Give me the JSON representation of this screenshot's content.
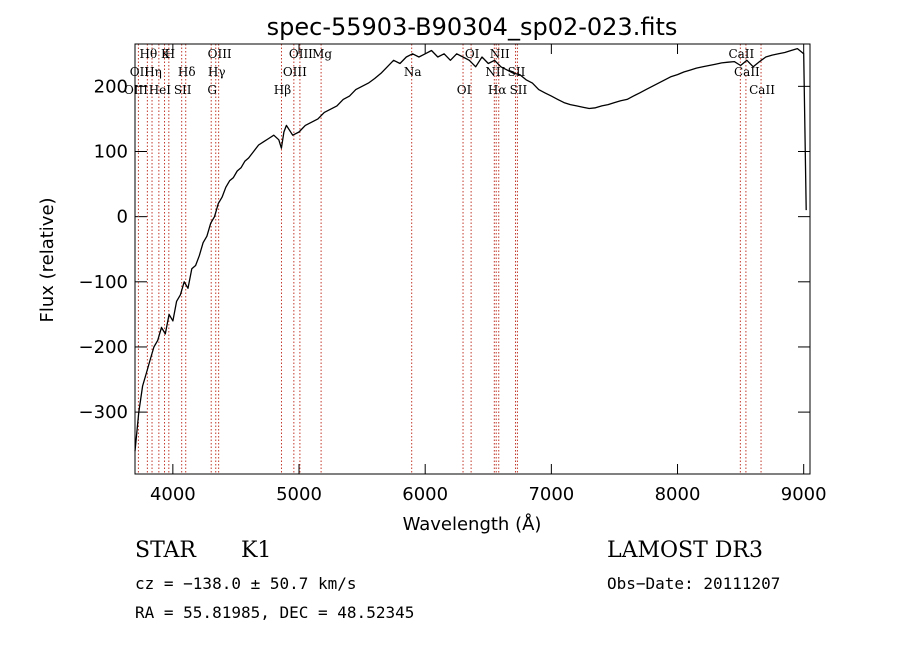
{
  "chart_data": {
    "type": "line",
    "title": "spec-55903-B90304_sp02-023.fits",
    "xlabel": "Wavelength (Å)",
    "ylabel": "Flux (relative)",
    "xlim": [
      3700,
      9050
    ],
    "ylim": [
      -395,
      265
    ],
    "x_ticks": [
      4000,
      5000,
      6000,
      7000,
      8000,
      9000
    ],
    "y_ticks": [
      -300,
      -200,
      -100,
      0,
      100,
      200
    ],
    "series": [
      {
        "name": "flux",
        "x": [
          3700,
          3730,
          3760,
          3790,
          3820,
          3850,
          3880,
          3910,
          3940,
          3970,
          4000,
          4030,
          4060,
          4090,
          4120,
          4150,
          4180,
          4210,
          4240,
          4270,
          4300,
          4330,
          4360,
          4390,
          4420,
          4450,
          4480,
          4510,
          4540,
          4570,
          4600,
          4640,
          4680,
          4720,
          4760,
          4800,
          4840,
          4860,
          4880,
          4900,
          4950,
          5000,
          5050,
          5100,
          5150,
          5200,
          5250,
          5300,
          5350,
          5400,
          5450,
          5500,
          5550,
          5600,
          5650,
          5700,
          5750,
          5800,
          5850,
          5900,
          5950,
          6000,
          6050,
          6100,
          6150,
          6200,
          6250,
          6300,
          6350,
          6400,
          6450,
          6500,
          6550,
          6600,
          6650,
          6700,
          6750,
          6800,
          6850,
          6900,
          6950,
          7000,
          7050,
          7100,
          7150,
          7200,
          7250,
          7300,
          7350,
          7400,
          7450,
          7500,
          7550,
          7600,
          7650,
          7700,
          7750,
          7800,
          7850,
          7900,
          7950,
          8000,
          8050,
          8100,
          8150,
          8200,
          8250,
          8300,
          8350,
          8400,
          8450,
          8500,
          8550,
          8600,
          8650,
          8700,
          8750,
          8800,
          8850,
          8900,
          8950,
          9000,
          9020
        ],
        "values": [
          -360,
          -300,
          -260,
          -240,
          -220,
          -200,
          -190,
          -170,
          -180,
          -150,
          -160,
          -130,
          -120,
          -100,
          -110,
          -80,
          -75,
          -60,
          -40,
          -30,
          -10,
          0,
          20,
          30,
          45,
          55,
          60,
          70,
          75,
          85,
          90,
          100,
          110,
          115,
          120,
          125,
          118,
          105,
          130,
          140,
          125,
          130,
          140,
          145,
          150,
          160,
          165,
          170,
          180,
          185,
          195,
          200,
          205,
          212,
          220,
          230,
          240,
          235,
          245,
          250,
          245,
          250,
          255,
          245,
          250,
          240,
          250,
          245,
          240,
          230,
          245,
          235,
          240,
          230,
          225,
          220,
          218,
          210,
          205,
          195,
          190,
          185,
          180,
          175,
          172,
          170,
          168,
          166,
          167,
          170,
          172,
          175,
          178,
          180,
          185,
          190,
          195,
          200,
          205,
          210,
          215,
          218,
          222,
          225,
          228,
          230,
          232,
          234,
          236,
          237,
          238,
          232,
          240,
          230,
          238,
          245,
          248,
          250,
          252,
          255,
          258,
          250,
          10
        ],
        "color": "#000000"
      }
    ],
    "lines": [
      {
        "label": "Hθ",
        "wavelength": 3798
      },
      {
        "label": "OII",
        "wavelength": 3727
      },
      {
        "label": "OIII",
        "wavelength": 3700
      },
      {
        "label": "K",
        "wavelength": 3934
      },
      {
        "label": "Hη",
        "wavelength": 3835
      },
      {
        "label": "HeI",
        "wavelength": 3889
      },
      {
        "label": "H",
        "wavelength": 3968
      },
      {
        "label": "Hδ",
        "wavelength": 4102
      },
      {
        "label": "SII",
        "wavelength": 4070
      },
      {
        "label": "OIII",
        "wavelength": 4363
      },
      {
        "label": "Hγ",
        "wavelength": 4340
      },
      {
        "label": "G",
        "wavelength": 4304
      },
      {
        "label": "OIII",
        "wavelength": 5007
      },
      {
        "label": "OIII",
        "wavelength": 4959
      },
      {
        "label": "Hβ",
        "wavelength": 4861
      },
      {
        "label": "Mg",
        "wavelength": 5175
      },
      {
        "label": "Na",
        "wavelength": 5893
      },
      {
        "label": "OI",
        "wavelength": 6300
      },
      {
        "label": "OI",
        "wavelength": 6364
      },
      {
        "label": "NII",
        "wavelength": 6548
      },
      {
        "label": "Hα",
        "wavelength": 6563
      },
      {
        "label": "NII",
        "wavelength": 6583
      },
      {
        "label": "SII",
        "wavelength": 6716
      },
      {
        "label": "SII",
        "wavelength": 6731
      },
      {
        "label": "CaII",
        "wavelength": 8498
      },
      {
        "label": "CaII",
        "wavelength": 8542
      },
      {
        "label": "CaII",
        "wavelength": 8662
      }
    ],
    "line_color": "#c0392b",
    "legend": "none",
    "grid": false
  },
  "info": {
    "class": "STAR",
    "subclass": "K1",
    "survey": "LAMOST DR3",
    "cz": "cz = −138.0 ± 50.7 km/s",
    "obs_date": "Obs−Date: 20111207",
    "coords": "RA =  55.81985, DEC =  48.52345"
  }
}
